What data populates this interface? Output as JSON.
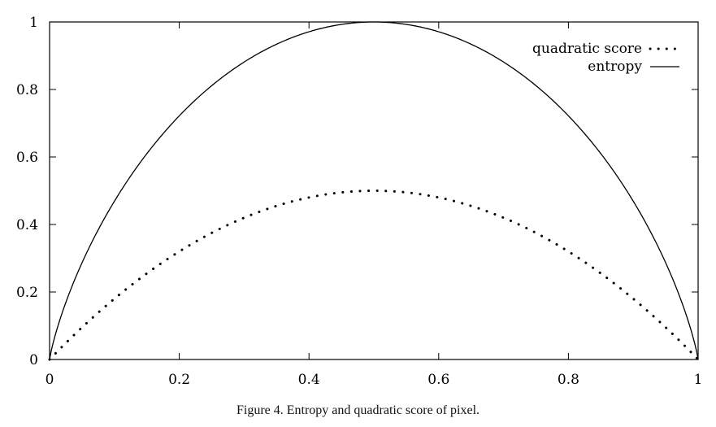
{
  "caption": "Figure 4. Entropy and quadratic score of pixel.",
  "chart_data": {
    "type": "line",
    "title": "",
    "xlabel": "",
    "ylabel": "",
    "xlim": [
      0,
      1
    ],
    "ylim": [
      0,
      1
    ],
    "xticks": [
      0,
      0.2,
      0.4,
      0.6,
      0.8,
      1
    ],
    "xtick_labels": [
      "0",
      "0.2",
      "0.4",
      "0.6",
      "0.8",
      "1"
    ],
    "yticks": [
      0,
      0.2,
      0.4,
      0.6,
      0.8,
      1
    ],
    "ytick_labels": [
      "0",
      "0.2",
      "0.4",
      "0.6",
      "0.8",
      "1"
    ],
    "grid": false,
    "legend_position": "top-right",
    "x": [
      0,
      0.05,
      0.1,
      0.15,
      0.2,
      0.25,
      0.3,
      0.35,
      0.4,
      0.45,
      0.5,
      0.55,
      0.6,
      0.65,
      0.7,
      0.75,
      0.8,
      0.85,
      0.9,
      0.95,
      1
    ],
    "series": [
      {
        "name": "quadratic score",
        "style": "dotted",
        "values": [
          0,
          0.095,
          0.18,
          0.255,
          0.32,
          0.375,
          0.42,
          0.455,
          0.48,
          0.495,
          0.5,
          0.495,
          0.48,
          0.455,
          0.42,
          0.375,
          0.32,
          0.255,
          0.18,
          0.095,
          0
        ]
      },
      {
        "name": "entropy",
        "style": "solid",
        "values": [
          0,
          0.286,
          0.469,
          0.61,
          0.722,
          0.811,
          0.881,
          0.934,
          0.971,
          0.993,
          1,
          0.993,
          0.971,
          0.934,
          0.881,
          0.811,
          0.722,
          0.61,
          0.469,
          0.286,
          0
        ]
      }
    ]
  }
}
